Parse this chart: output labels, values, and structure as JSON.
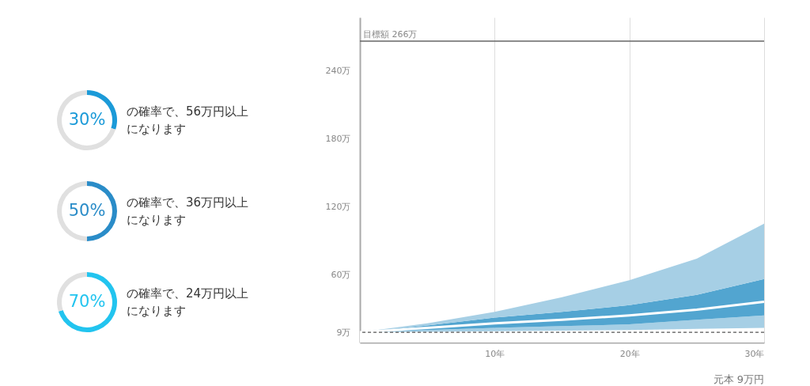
{
  "chart_data": [
    {
      "type": "donut",
      "categories": [
        null,
        null
      ],
      "values": [
        30,
        70
      ],
      "colors": [
        "#1b9ad8",
        "#e0e0e0"
      ],
      "value_labels": [
        "30%",
        null
      ],
      "annotations": [
        "の確率で、56万円以上になります"
      ]
    },
    {
      "type": "donut",
      "categories": [
        null,
        null
      ],
      "values": [
        50,
        50
      ],
      "colors": [
        "#2a8cc8",
        "#e0e0e0"
      ],
      "value_labels": [
        "50%",
        null
      ],
      "annotations": [
        "の確率で、36万円以上になります"
      ]
    },
    {
      "type": "donut",
      "categories": [
        null,
        null
      ],
      "values": [
        70,
        30
      ],
      "colors": [
        "#22c4ef",
        "#e0e0e0"
      ],
      "value_labels": [
        "70%",
        null
      ],
      "annotations": [
        "の確率で、24万円以上になります"
      ]
    },
    {
      "type": "area",
      "stacked": true,
      "x": [
        0,
        5,
        10,
        15,
        20,
        25,
        30
      ],
      "series": [
        {
          "color": "#ffffff",
          "values": [
            9,
            9.5,
            10,
            10.5,
            11,
            12,
            13
          ]
        },
        {
          "color": "#a6cfe5",
          "values": [
            0,
            1.5,
            3,
            4,
            5,
            8,
            11
          ]
        },
        {
          "color": "#52a5d0",
          "values": [
            0,
            4,
            9,
            12.5,
            17,
            22,
            32
          ]
        },
        {
          "color": "#a6cfe5",
          "values": [
            0,
            2,
            5,
            13,
            22,
            32,
            49
          ]
        },
        {
          "type": "line",
          "color": "#ffffff",
          "values": [
            9,
            13,
            17,
            20,
            24,
            29,
            36
          ]
        }
      ],
      "xlim": [
        0,
        30
      ],
      "xticks": [
        {
          "value": 10,
          "label": "10年"
        },
        {
          "value": 20,
          "label": "20年"
        },
        {
          "value": 30,
          "label": "30年"
        }
      ],
      "ylim": [
        0,
        287
      ],
      "yticks": [
        {
          "value": 9,
          "label": "9万"
        },
        {
          "value": 60,
          "label": "60万"
        },
        {
          "value": 120,
          "label": "120万"
        },
        {
          "value": 180,
          "label": "180万"
        },
        {
          "value": 240,
          "label": "240万"
        }
      ],
      "grid": "x",
      "ref_lines": [
        {
          "axis": "y",
          "value": 266,
          "label": "目標額 266万",
          "color": "#666666",
          "line_style": "solid"
        },
        {
          "axis": "y",
          "value": 9,
          "color": "#555555",
          "line_style": "dashed"
        }
      ],
      "annotations": [
        "元本 9万円"
      ]
    }
  ]
}
